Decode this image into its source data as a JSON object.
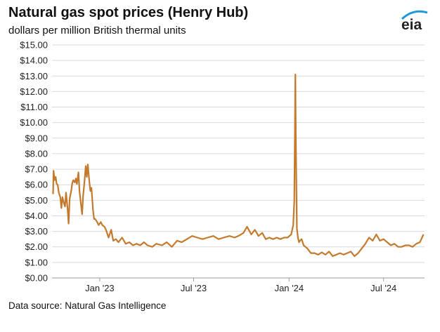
{
  "header": {
    "title": "Natural gas spot prices (Henry Hub)",
    "subtitle": "dollars per million British thermal units",
    "logo_text": "eia"
  },
  "footer": {
    "source": "Data source: Natural Gas Intelligence"
  },
  "colors": {
    "series": "#c47a2c",
    "grid": "#d9d9d9",
    "logo_arc": "#1f9ad6"
  },
  "chart_data": {
    "type": "line",
    "title": "Natural gas spot prices (Henry Hub)",
    "subtitle": "dollars per million British thermal units",
    "xlabel": "",
    "ylabel": "",
    "ylim": [
      0,
      15
    ],
    "xlim": [
      "2022-10-01",
      "2024-09-18"
    ],
    "grid": true,
    "y_ticks": [
      {
        "value": 0,
        "label": "$0.00"
      },
      {
        "value": 1,
        "label": "$1.00"
      },
      {
        "value": 2,
        "label": "$2.00"
      },
      {
        "value": 3,
        "label": "$3.00"
      },
      {
        "value": 4,
        "label": "$4.00"
      },
      {
        "value": 5,
        "label": "$5.00"
      },
      {
        "value": 6,
        "label": "$6.00"
      },
      {
        "value": 7,
        "label": "$7.00"
      },
      {
        "value": 8,
        "label": "$8.00"
      },
      {
        "value": 9,
        "label": "$9.00"
      },
      {
        "value": 10,
        "label": "$10.00"
      },
      {
        "value": 11,
        "label": "$11.00"
      },
      {
        "value": 12,
        "label": "$12.00"
      },
      {
        "value": 13,
        "label": "$13.00"
      },
      {
        "value": 14,
        "label": "$14.00"
      },
      {
        "value": 15,
        "label": "$15.00"
      }
    ],
    "x_ticks": [
      {
        "date": "2023-01-01",
        "label": "Jan '23"
      },
      {
        "date": "2023-07-01",
        "label": "Jul '23"
      },
      {
        "date": "2024-01-01",
        "label": "Jan '24"
      },
      {
        "date": "2024-07-01",
        "label": "Jul '24"
      }
    ],
    "series": [
      {
        "x": [
          "2022-10-03",
          "2022-10-04",
          "2022-10-06",
          "2022-10-08",
          "2022-10-10",
          "2022-10-12",
          "2022-10-14",
          "2022-10-17",
          "2022-10-19",
          "2022-10-21",
          "2022-10-24",
          "2022-10-26",
          "2022-10-28",
          "2022-10-31",
          "2022-11-02",
          "2022-11-04",
          "2022-11-07",
          "2022-11-09",
          "2022-11-11",
          "2022-11-14",
          "2022-11-16",
          "2022-11-18",
          "2022-11-21",
          "2022-11-23",
          "2022-11-28",
          "2022-11-30",
          "2022-12-02",
          "2022-12-05",
          "2022-12-07",
          "2022-12-09",
          "2022-12-12",
          "2022-12-14",
          "2022-12-16",
          "2022-12-19",
          "2022-12-21",
          "2022-12-23",
          "2022-12-27",
          "2022-12-30",
          "2023-01-03",
          "2023-01-06",
          "2023-01-10",
          "2023-01-13",
          "2023-01-18",
          "2023-01-23",
          "2023-01-27",
          "2023-02-01",
          "2023-02-06",
          "2023-02-13",
          "2023-02-20",
          "2023-02-27",
          "2023-03-06",
          "2023-03-13",
          "2023-03-20",
          "2023-03-27",
          "2023-04-03",
          "2023-04-12",
          "2023-04-20",
          "2023-05-01",
          "2023-05-10",
          "2023-05-20",
          "2023-05-30",
          "2023-06-08",
          "2023-06-18",
          "2023-06-28",
          "2023-07-08",
          "2023-07-18",
          "2023-07-28",
          "2023-08-08",
          "2023-08-18",
          "2023-08-28",
          "2023-09-08",
          "2023-09-18",
          "2023-09-28",
          "2023-10-05",
          "2023-10-12",
          "2023-10-20",
          "2023-10-27",
          "2023-11-03",
          "2023-11-10",
          "2023-11-17",
          "2023-11-24",
          "2023-12-01",
          "2023-12-08",
          "2023-12-15",
          "2023-12-22",
          "2023-12-29",
          "2024-01-05",
          "2024-01-09",
          "2024-01-11",
          "2024-01-12",
          "2024-01-13",
          "2024-01-14",
          "2024-01-16",
          "2024-01-18",
          "2024-01-20",
          "2024-01-22",
          "2024-01-25",
          "2024-01-29",
          "2024-02-05",
          "2024-02-12",
          "2024-02-19",
          "2024-02-26",
          "2024-03-04",
          "2024-03-11",
          "2024-03-18",
          "2024-03-25",
          "2024-04-01",
          "2024-04-08",
          "2024-04-15",
          "2024-04-22",
          "2024-04-29",
          "2024-05-06",
          "2024-05-13",
          "2024-05-20",
          "2024-05-27",
          "2024-06-03",
          "2024-06-10",
          "2024-06-17",
          "2024-06-24",
          "2024-07-01",
          "2024-07-08",
          "2024-07-15",
          "2024-07-22",
          "2024-07-29",
          "2024-08-05",
          "2024-08-12",
          "2024-08-19",
          "2024-08-26",
          "2024-09-02",
          "2024-09-09",
          "2024-09-16"
        ],
        "values": [
          5.4,
          6.9,
          6.3,
          6.5,
          6.05,
          6.0,
          5.5,
          5.2,
          4.5,
          5.2,
          4.8,
          4.6,
          5.5,
          4.5,
          3.5,
          5.1,
          5.6,
          6.1,
          6.3,
          6.15,
          6.4,
          6.05,
          6.8,
          5.6,
          4.1,
          5.3,
          6.0,
          7.2,
          6.5,
          7.3,
          6.2,
          5.6,
          5.8,
          4.4,
          3.8,
          3.8,
          3.6,
          3.4,
          3.6,
          3.4,
          3.3,
          3.1,
          2.6,
          3.1,
          2.4,
          2.5,
          2.3,
          2.6,
          2.2,
          2.3,
          2.1,
          2.2,
          2.1,
          2.3,
          2.1,
          2.0,
          2.2,
          2.1,
          2.3,
          2.0,
          2.4,
          2.3,
          2.5,
          2.7,
          2.6,
          2.5,
          2.6,
          2.7,
          2.5,
          2.6,
          2.7,
          2.6,
          2.75,
          2.9,
          3.3,
          2.8,
          3.1,
          2.7,
          2.9,
          2.5,
          2.6,
          2.5,
          2.6,
          2.5,
          2.6,
          2.6,
          2.8,
          3.4,
          5.0,
          9.0,
          13.1,
          9.0,
          3.2,
          2.6,
          2.3,
          2.4,
          2.5,
          2.1,
          1.9,
          1.6,
          1.6,
          1.5,
          1.65,
          1.5,
          1.7,
          1.4,
          1.5,
          1.6,
          1.5,
          1.6,
          1.7,
          1.4,
          1.6,
          1.9,
          2.2,
          2.6,
          2.4,
          2.8,
          2.4,
          2.5,
          2.3,
          2.1,
          2.2,
          2.0,
          2.0,
          2.1,
          2.1,
          2.0,
          2.2,
          2.3,
          2.8
        ]
      }
    ]
  }
}
